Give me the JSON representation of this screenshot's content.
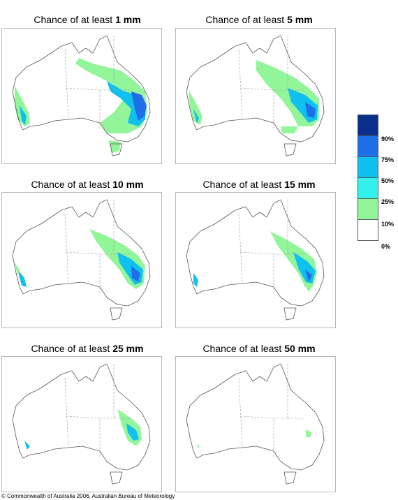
{
  "panels": [
    {
      "prefix": "Chance of at least ",
      "amount": "1 mm",
      "level": "1mm"
    },
    {
      "prefix": "Chance of at least ",
      "amount": "5 mm",
      "level": "5mm"
    },
    {
      "prefix": "Chance of at least ",
      "amount": "10 mm",
      "level": "10mm"
    },
    {
      "prefix": "Chance of at least ",
      "amount": "15 mm",
      "level": "15mm"
    },
    {
      "prefix": "Chance of at least ",
      "amount": "25 mm",
      "level": "25mm"
    },
    {
      "prefix": "Chance of at least ",
      "amount": "50 mm",
      "level": "50mm"
    }
  ],
  "legend": {
    "bins": [
      {
        "color": "#0a2f8c"
      },
      {
        "color": "#1f6fe8"
      },
      {
        "color": "#10c0ee"
      },
      {
        "color": "#33f2ee"
      },
      {
        "color": "#92f59a"
      },
      {
        "color": "#ffffff"
      }
    ],
    "labels": [
      "90%",
      "75%",
      "50%",
      "25%",
      "10%",
      "0%"
    ]
  },
  "copyright": "© Commonwealth of Australia 2006, Australian Bureau of Meteorology"
}
